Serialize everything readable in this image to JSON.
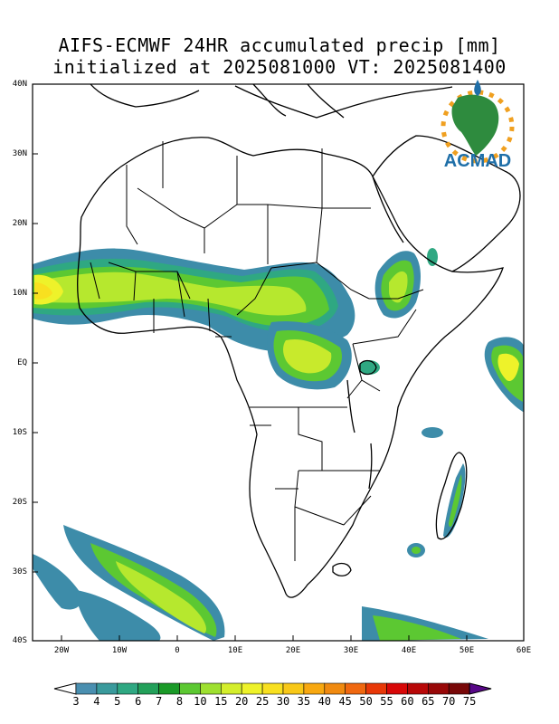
{
  "title": {
    "line1": "AIFS-ECMWF 24HR accumulated precip [mm]",
    "line2": "initialized at 2025081000 VT: 2025081400"
  },
  "map": {
    "lat_labels": [
      "40N",
      "30N",
      "20N",
      "10N",
      "EQ",
      "10S",
      "20S",
      "30S",
      "40S"
    ],
    "lon_labels": [
      "20W",
      "10W",
      "0",
      "10E",
      "20E",
      "30E",
      "40E",
      "50E",
      "60E"
    ]
  },
  "logo": {
    "text": "ACMAD"
  },
  "colorbar": {
    "labels": [
      "3",
      "4",
      "5",
      "6",
      "7",
      "8",
      "10",
      "15",
      "20",
      "25",
      "30",
      "35",
      "40",
      "45",
      "50",
      "55",
      "60",
      "65",
      "70",
      "75"
    ],
    "colors": [
      "#4a8fb0",
      "#3a9a9c",
      "#2fa882",
      "#23a05a",
      "#1a9a28",
      "#5cc832",
      "#9ee030",
      "#d4ee2c",
      "#eef22a",
      "#f8e020",
      "#f8c818",
      "#f8a810",
      "#f08a10",
      "#f06810",
      "#e83808",
      "#d80808",
      "#b80808",
      "#980808",
      "#780808",
      "#580858"
    ],
    "end_low_color": "#ffffff",
    "end_high_color": "#580888"
  }
}
